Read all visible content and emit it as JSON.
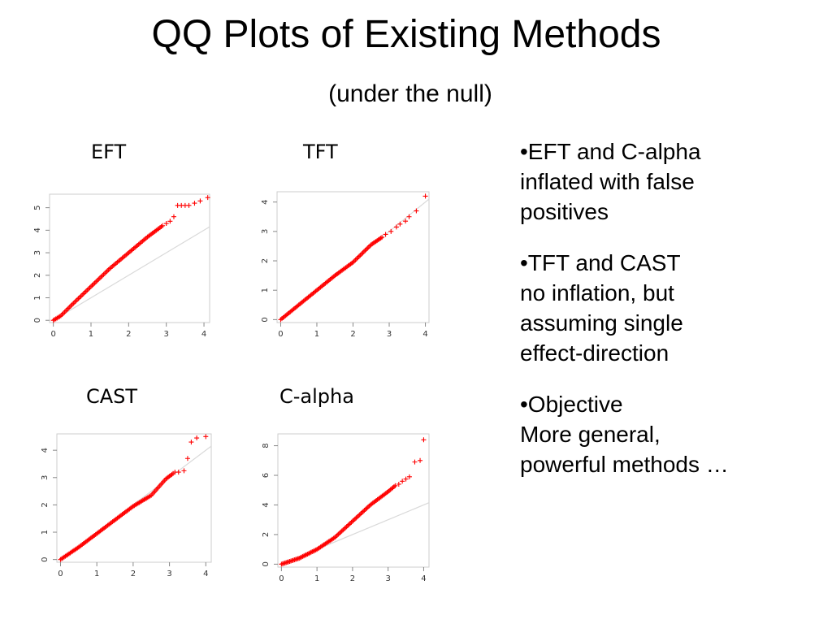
{
  "slide": {
    "title": "QQ Plots of Existing Methods",
    "subtitle": "(under the null)"
  },
  "labels": {
    "eft": "EFT",
    "tft": "TFT",
    "cast": "CAST",
    "calpha": "C-alpha"
  },
  "bullets": {
    "b1_head": "•EFT and C-alpha",
    "b1_line1": "inflated with false",
    "b1_line2": "positives",
    "b2_head": "•TFT and CAST",
    "b2_line1": "no inflation, but",
    "b2_line2": "assuming single",
    "b2_line3": "effect-direction",
    "b3_head": "•Objective",
    "b3_line1": "More general,",
    "b3_line2": "powerful methods …"
  },
  "colors": {
    "points": "#ff0000",
    "reference_line": "#d9d9d9",
    "frame": "#cccccc",
    "axis_text": "#333333"
  },
  "chart_data": [
    {
      "type": "scatter",
      "title": "EFT",
      "xlabel": "",
      "ylabel": "",
      "xlim": [
        -0.1,
        4.15
      ],
      "ylim": [
        -0.1,
        5.6
      ],
      "xticks": [
        0,
        1,
        2,
        3,
        4
      ],
      "yticks": [
        0,
        1,
        2,
        3,
        4,
        5
      ],
      "reference_line": "y = x",
      "curve": [
        [
          0,
          0
        ],
        [
          0.2,
          0.2
        ],
        [
          0.5,
          0.7
        ],
        [
          1.0,
          1.5
        ],
        [
          1.5,
          2.3
        ],
        [
          2.0,
          3.0
        ],
        [
          2.5,
          3.7
        ],
        [
          2.9,
          4.2
        ]
      ],
      "tail_points": [
        [
          3.0,
          4.3
        ],
        [
          3.1,
          4.4
        ],
        [
          3.2,
          4.6
        ],
        [
          3.3,
          5.1
        ],
        [
          3.4,
          5.1
        ],
        [
          3.5,
          5.1
        ],
        [
          3.6,
          5.1
        ],
        [
          3.75,
          5.2
        ],
        [
          3.9,
          5.3
        ],
        [
          4.1,
          5.45
        ]
      ]
    },
    {
      "type": "scatter",
      "title": "TFT",
      "xlabel": "",
      "ylabel": "",
      "xlim": [
        -0.1,
        4.1
      ],
      "ylim": [
        -0.1,
        4.35
      ],
      "xticks": [
        0,
        1,
        2,
        3,
        4
      ],
      "yticks": [
        0,
        1,
        2,
        3,
        4
      ],
      "reference_line": "y = x",
      "curve": [
        [
          0,
          0
        ],
        [
          0.5,
          0.5
        ],
        [
          1.0,
          1.0
        ],
        [
          1.5,
          1.5
        ],
        [
          2.0,
          1.95
        ],
        [
          2.5,
          2.55
        ],
        [
          2.8,
          2.8
        ]
      ],
      "tail_points": [
        [
          2.9,
          2.9
        ],
        [
          3.05,
          3.0
        ],
        [
          3.2,
          3.15
        ],
        [
          3.3,
          3.25
        ],
        [
          3.45,
          3.35
        ],
        [
          3.55,
          3.5
        ],
        [
          3.75,
          3.7
        ],
        [
          4.0,
          4.2
        ]
      ]
    },
    {
      "type": "scatter",
      "title": "CAST",
      "xlabel": "",
      "ylabel": "",
      "xlim": [
        -0.1,
        4.15
      ],
      "ylim": [
        -0.1,
        4.6
      ],
      "xticks": [
        0,
        1,
        2,
        3,
        4
      ],
      "yticks": [
        0,
        1,
        2,
        3,
        4
      ],
      "reference_line": "y = x",
      "curve": [
        [
          0,
          0
        ],
        [
          0.5,
          0.45
        ],
        [
          1.0,
          0.95
        ],
        [
          1.5,
          1.45
        ],
        [
          2.0,
          1.95
        ],
        [
          2.5,
          2.35
        ],
        [
          2.9,
          2.95
        ],
        [
          3.1,
          3.15
        ]
      ],
      "tail_points": [
        [
          3.15,
          3.2
        ],
        [
          3.25,
          3.2
        ],
        [
          3.4,
          3.25
        ],
        [
          3.5,
          3.7
        ],
        [
          3.6,
          4.3
        ],
        [
          3.75,
          4.45
        ],
        [
          4.0,
          4.5
        ]
      ]
    },
    {
      "type": "scatter",
      "title": "C-alpha",
      "xlabel": "",
      "ylabel": "",
      "xlim": [
        -0.1,
        4.15
      ],
      "ylim": [
        -0.2,
        8.8
      ],
      "xticks": [
        0,
        1,
        2,
        3,
        4
      ],
      "yticks": [
        0,
        2,
        4,
        6,
        8
      ],
      "reference_line": "y = x",
      "curve": [
        [
          0,
          0
        ],
        [
          0.5,
          0.4
        ],
        [
          1.0,
          1.0
        ],
        [
          1.5,
          1.8
        ],
        [
          2.0,
          2.9
        ],
        [
          2.5,
          4.0
        ],
        [
          3.0,
          4.9
        ],
        [
          3.2,
          5.3
        ]
      ],
      "tail_points": [
        [
          3.3,
          5.4
        ],
        [
          3.4,
          5.6
        ],
        [
          3.5,
          5.75
        ],
        [
          3.6,
          5.9
        ],
        [
          3.75,
          6.9
        ],
        [
          3.9,
          7.0
        ],
        [
          4.0,
          8.4
        ]
      ]
    }
  ]
}
